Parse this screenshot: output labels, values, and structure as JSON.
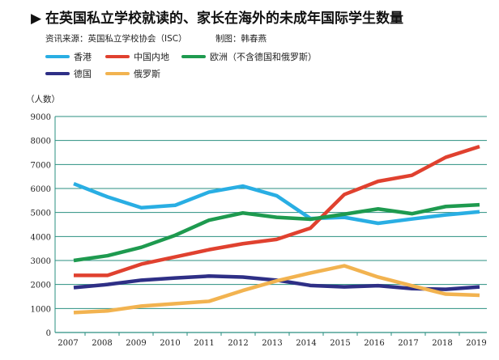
{
  "chart_data": {
    "type": "line",
    "title": "在英国私立学校就读的、家长在海外的未成年国际学生数量",
    "source": "资讯来源：英国私立学校协会（ISC）",
    "credit": "制图：韩春燕",
    "ylabel": "（人数）",
    "xlabel": "",
    "ylim": [
      0,
      9000
    ],
    "yticks": [
      "0",
      "1000",
      "2000",
      "3000",
      "4000",
      "5000",
      "6000",
      "7000",
      "8000",
      "9000"
    ],
    "categories": [
      "2007",
      "2008",
      "2009",
      "2010",
      "2011",
      "2012",
      "2013",
      "2014",
      "2015",
      "2016",
      "2017",
      "2018",
      "2019"
    ],
    "grid": "horizontal",
    "legend_position": "top-left",
    "gridline_color": "#2a8f80",
    "series": [
      {
        "name": "香港",
        "color": "#29aee3",
        "values": [
          6200,
          5650,
          5200,
          5300,
          5850,
          6100,
          5700,
          4750,
          4800,
          4550,
          4730,
          4900,
          5030
        ]
      },
      {
        "name": "中国内地",
        "color": "#e0412f",
        "values": [
          2380,
          2380,
          2850,
          3150,
          3450,
          3700,
          3880,
          4350,
          5750,
          6300,
          6550,
          7300,
          7750
        ]
      },
      {
        "name": "欧洲（不含德国和俄罗斯）",
        "color": "#1e9a4f",
        "values": [
          3000,
          3200,
          3550,
          4050,
          4680,
          4980,
          4800,
          4720,
          4930,
          5150,
          4950,
          5250,
          5320
        ]
      },
      {
        "name": "德国",
        "color": "#2e2f86",
        "values": [
          1870,
          2000,
          2180,
          2270,
          2350,
          2310,
          2180,
          1960,
          1900,
          1950,
          1830,
          1800,
          1900
        ]
      },
      {
        "name": "俄罗斯",
        "color": "#f2b350",
        "values": [
          830,
          900,
          1100,
          1200,
          1300,
          1750,
          2150,
          2480,
          2780,
          2310,
          1950,
          1600,
          1550
        ]
      }
    ]
  }
}
